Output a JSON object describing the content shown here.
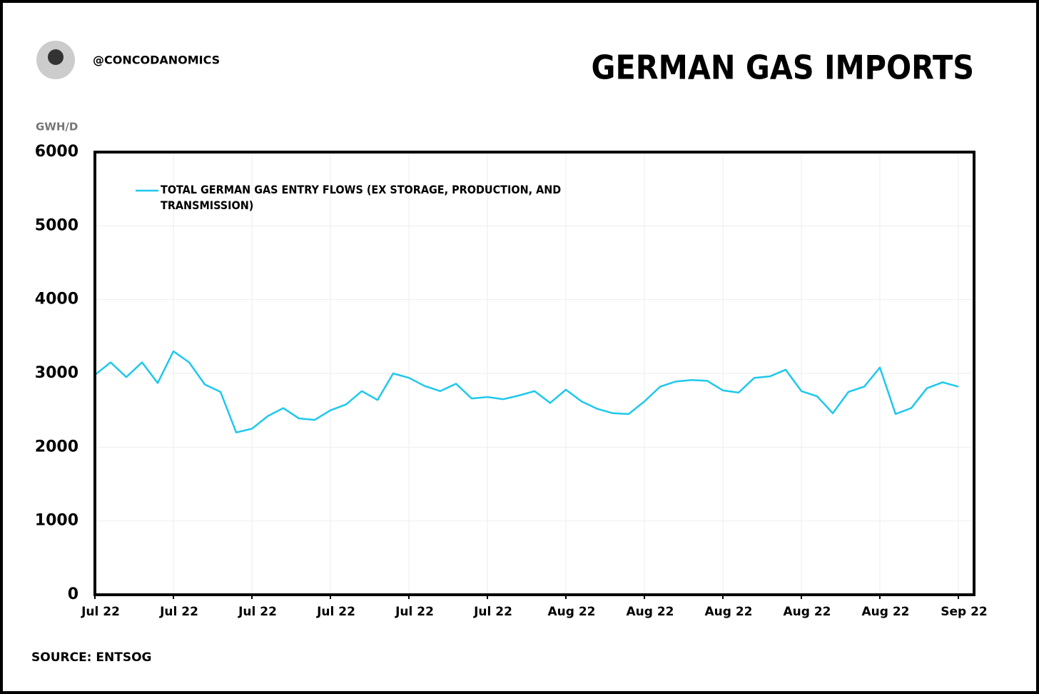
{
  "header": {
    "handle": "@CONCODANOMICS"
  },
  "chart_data": {
    "type": "line",
    "title": "GERMAN GAS IMPORTS",
    "y_label": "GWH/D",
    "source": "SOURCE: ENTSOG",
    "x": [
      0,
      1,
      2,
      3,
      4,
      5,
      6,
      7,
      8,
      9,
      10,
      11,
      12,
      13,
      14,
      15,
      16,
      17,
      18,
      19,
      20,
      21,
      22,
      23,
      24,
      25,
      26,
      27,
      28,
      29,
      30,
      31,
      32,
      33,
      34,
      35,
      36,
      37,
      38,
      39,
      40,
      41,
      42,
      43,
      44,
      45,
      46,
      47,
      48,
      49,
      50,
      51,
      52,
      53,
      54,
      55
    ],
    "series": [
      {
        "name": "TOTAL GERMAN GAS ENTRY FLOWS (EX STORAGE, PRODUCTION, AND TRANSMISSION)",
        "color": "#1ec8ec",
        "values": [
          2980,
          3150,
          2950,
          3150,
          2870,
          3300,
          3150,
          2850,
          2750,
          2200,
          2250,
          2420,
          2530,
          2390,
          2370,
          2500,
          2580,
          2760,
          2640,
          3000,
          2940,
          2830,
          2760,
          2860,
          2660,
          2680,
          2650,
          2700,
          2760,
          2600,
          2780,
          2620,
          2520,
          2460,
          2450,
          2620,
          2820,
          2890,
          2910,
          2900,
          2770,
          2740,
          2940,
          2960,
          3050,
          2760,
          2690,
          2460,
          2750,
          2820,
          3080,
          2450,
          2530,
          2800,
          2880,
          2820
        ]
      }
    ],
    "xlim": [
      0,
      56
    ],
    "xticks": [
      {
        "value": 0,
        "label": "Jul 22"
      },
      {
        "value": 5,
        "label": "Jul 22"
      },
      {
        "value": 10,
        "label": "Jul 22"
      },
      {
        "value": 15,
        "label": "Jul 22"
      },
      {
        "value": 20,
        "label": "Jul 22"
      },
      {
        "value": 25,
        "label": "Jul 22"
      },
      {
        "value": 30,
        "label": "Aug 22"
      },
      {
        "value": 35,
        "label": "Aug 22"
      },
      {
        "value": 40,
        "label": "Aug 22"
      },
      {
        "value": 45,
        "label": "Aug 22"
      },
      {
        "value": 50,
        "label": "Aug 22"
      },
      {
        "value": 55,
        "label": "Sep 22"
      }
    ],
    "ylim": [
      0,
      6000
    ],
    "yticks": [
      0,
      1000,
      2000,
      3000,
      4000,
      5000,
      6000
    ],
    "grid": true
  }
}
